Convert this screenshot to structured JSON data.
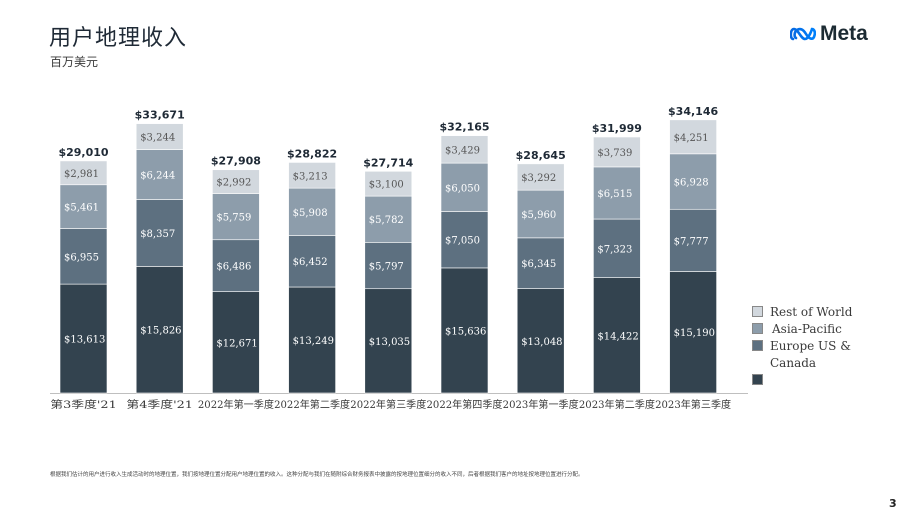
{
  "header": {
    "title": "用户地理收入",
    "subtitle": "百万美元",
    "logo_text": "Meta"
  },
  "chart_data": {
    "type": "bar",
    "stacked": true,
    "categories": [
      "第3季度'21",
      "第4季度'21",
      "2022年第一季度",
      "2022年第二季度",
      "2022年第三季度",
      "2022年第四季度",
      "2023年第一季度",
      "2023年第二季度",
      "2023年第三季度"
    ],
    "totals": [
      "$29,010",
      "$33,671",
      "$27,908",
      "$28,822",
      "$27,714",
      "$32,165",
      "$28,645",
      "$31,999",
      "$34,146"
    ],
    "series": [
      {
        "name": "Canada",
        "color": "#33434f",
        "values": [
          13613,
          15826,
          12671,
          13249,
          13035,
          15636,
          13048,
          14422,
          15190
        ],
        "labels": [
          "$13,613",
          "$15,826",
          "$12,671",
          "$13,249",
          "$13,035",
          "$15,636",
          "$13,048",
          "$14,422",
          "$15,190"
        ]
      },
      {
        "name": "Europe US &",
        "color": "#5d7080",
        "values": [
          6955,
          8357,
          6486,
          6452,
          5797,
          7050,
          6345,
          7323,
          7777
        ],
        "labels": [
          "$6,955",
          "$8,357",
          "$6,486",
          "$6,452",
          "$5,797",
          "$7,050",
          "$6,345",
          "$7,323",
          "$7,777"
        ]
      },
      {
        "name": "Asia-Pacific",
        "color": "#8d9dab",
        "values": [
          5461,
          6244,
          5759,
          5908,
          5782,
          6050,
          5960,
          6515,
          6928
        ],
        "labels": [
          "$5,461",
          "$6,244",
          "$5,759",
          "$5,908",
          "$5,782",
          "$6,050",
          "$5,960",
          "$6,515",
          "$6,928"
        ]
      },
      {
        "name": "Rest of World",
        "color": "#d2d8de",
        "values": [
          2981,
          3244,
          2992,
          3213,
          3100,
          3429,
          3292,
          3739,
          4251
        ],
        "labels": [
          "$2,981",
          "$3,244",
          "$2,992",
          "$3,213",
          "$3,100",
          "$3,429",
          "$3,292",
          "$3,739",
          "$4,251"
        ]
      }
    ],
    "ylim": [
      0,
      35000
    ],
    "grid": false,
    "legend_position": "right"
  },
  "legend": {
    "items": [
      {
        "label": "Rest of World",
        "color": "#d2d8de"
      },
      {
        "label": "Asia-Pacific",
        "color": "#8d9dab"
      },
      {
        "label": "Europe US &",
        "color": "#5d7080"
      },
      {
        "label": "Canada",
        "color": "#33434f"
      }
    ]
  },
  "footnote": "根据我们估计的用户进行收入生成活动时的地理位置，我们按地理位置分配用户地理位置的收入。这种分配与我们在随附综合财务报表中披露的按地理位置细分的收入不同，后者根据我们客户的地址按地理位置进行分配。",
  "page_number": "3"
}
